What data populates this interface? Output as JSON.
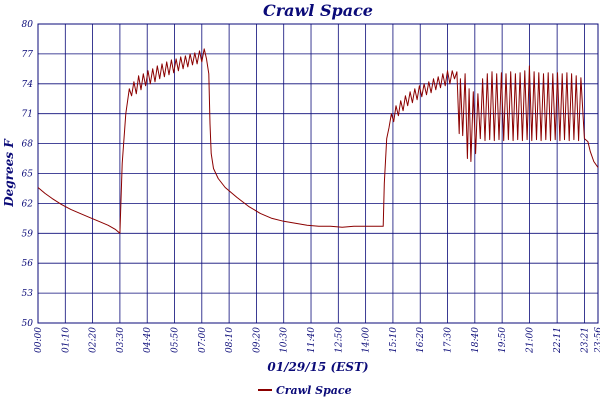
{
  "colors": {
    "plot_background": "#ffffff",
    "grid": "#0a0a78",
    "axis_text": "#0a0a78",
    "series": "#8b0000"
  },
  "chart_data": {
    "type": "line",
    "title": "Crawl Space",
    "xlabel": "01/29/15 (EST)",
    "ylabel": "Degrees F",
    "ylim": [
      50,
      80
    ],
    "yticks": [
      50,
      53,
      56,
      59,
      62,
      65,
      68,
      71,
      74,
      77,
      80
    ],
    "xlim": [
      0,
      23.93
    ],
    "xticks": [
      {
        "label": "00:00",
        "hour": 0
      },
      {
        "label": "01:10",
        "hour": 1.1667
      },
      {
        "label": "02:20",
        "hour": 2.3333
      },
      {
        "label": "03:30",
        "hour": 3.5
      },
      {
        "label": "04:40",
        "hour": 4.6667
      },
      {
        "label": "05:50",
        "hour": 5.8333
      },
      {
        "label": "07:00",
        "hour": 7.0
      },
      {
        "label": "08:10",
        "hour": 8.1667
      },
      {
        "label": "09:20",
        "hour": 9.3333
      },
      {
        "label": "10:30",
        "hour": 10.5
      },
      {
        "label": "11:40",
        "hour": 11.6667
      },
      {
        "label": "12:50",
        "hour": 12.8333
      },
      {
        "label": "14:00",
        "hour": 14.0
      },
      {
        "label": "15:10",
        "hour": 15.1667
      },
      {
        "label": "16:20",
        "hour": 16.3333
      },
      {
        "label": "17:30",
        "hour": 17.5
      },
      {
        "label": "18:40",
        "hour": 18.6667
      },
      {
        "label": "19:50",
        "hour": 19.8333
      },
      {
        "label": "21:00",
        "hour": 21.0
      },
      {
        "label": "22:11",
        "hour": 22.1833
      },
      {
        "label": "23:21",
        "hour": 23.35
      },
      {
        "label": "23:56",
        "hour": 23.9333
      }
    ],
    "grid": true,
    "legend": "bottom-center",
    "series": [
      {
        "name": "Crawl Space",
        "x_unit": "hours since 00:00",
        "points": [
          [
            0.0,
            63.6
          ],
          [
            0.3,
            63.0
          ],
          [
            0.6,
            62.5
          ],
          [
            1.0,
            61.9
          ],
          [
            1.4,
            61.4
          ],
          [
            1.8,
            61.0
          ],
          [
            2.2,
            60.6
          ],
          [
            2.6,
            60.2
          ],
          [
            3.0,
            59.8
          ],
          [
            3.3,
            59.4
          ],
          [
            3.45,
            59.1
          ],
          [
            3.5,
            59.0
          ],
          [
            3.6,
            66.0
          ],
          [
            3.75,
            71.0
          ],
          [
            3.9,
            73.5
          ],
          [
            4.0,
            72.8
          ],
          [
            4.1,
            74.2
          ],
          [
            4.2,
            73.0
          ],
          [
            4.3,
            74.8
          ],
          [
            4.4,
            73.4
          ],
          [
            4.5,
            75.0
          ],
          [
            4.6,
            73.8
          ],
          [
            4.7,
            75.3
          ],
          [
            4.8,
            74.0
          ],
          [
            4.9,
            75.5
          ],
          [
            5.0,
            74.2
          ],
          [
            5.1,
            75.8
          ],
          [
            5.2,
            74.5
          ],
          [
            5.3,
            76.0
          ],
          [
            5.4,
            74.7
          ],
          [
            5.5,
            76.2
          ],
          [
            5.6,
            74.9
          ],
          [
            5.7,
            76.4
          ],
          [
            5.8,
            75.1
          ],
          [
            5.9,
            76.5
          ],
          [
            6.0,
            75.3
          ],
          [
            6.1,
            76.7
          ],
          [
            6.2,
            75.5
          ],
          [
            6.3,
            76.8
          ],
          [
            6.4,
            75.7
          ],
          [
            6.5,
            77.0
          ],
          [
            6.6,
            75.9
          ],
          [
            6.7,
            77.1
          ],
          [
            6.8,
            76.0
          ],
          [
            6.9,
            77.3
          ],
          [
            7.0,
            76.2
          ],
          [
            7.1,
            77.5
          ],
          [
            7.2,
            76.5
          ],
          [
            7.3,
            75.0
          ],
          [
            7.35,
            70.0
          ],
          [
            7.4,
            67.0
          ],
          [
            7.5,
            65.5
          ],
          [
            7.7,
            64.5
          ],
          [
            8.0,
            63.6
          ],
          [
            8.5,
            62.6
          ],
          [
            9.0,
            61.7
          ],
          [
            9.5,
            61.0
          ],
          [
            10.0,
            60.5
          ],
          [
            10.5,
            60.2
          ],
          [
            11.0,
            60.0
          ],
          [
            11.5,
            59.8
          ],
          [
            12.0,
            59.7
          ],
          [
            12.5,
            59.7
          ],
          [
            13.0,
            59.6
          ],
          [
            13.5,
            59.7
          ],
          [
            14.0,
            59.7
          ],
          [
            14.5,
            59.7
          ],
          [
            14.75,
            59.7
          ],
          [
            14.8,
            64.0
          ],
          [
            14.9,
            68.5
          ],
          [
            15.0,
            69.6
          ],
          [
            15.1,
            71.0
          ],
          [
            15.2,
            70.2
          ],
          [
            15.3,
            71.8
          ],
          [
            15.4,
            70.8
          ],
          [
            15.5,
            72.3
          ],
          [
            15.6,
            71.3
          ],
          [
            15.7,
            72.8
          ],
          [
            15.8,
            71.8
          ],
          [
            15.9,
            73.2
          ],
          [
            16.0,
            72.1
          ],
          [
            16.1,
            73.5
          ],
          [
            16.2,
            72.4
          ],
          [
            16.3,
            73.8
          ],
          [
            16.4,
            72.7
          ],
          [
            16.5,
            74.0
          ],
          [
            16.6,
            72.9
          ],
          [
            16.7,
            74.2
          ],
          [
            16.8,
            73.1
          ],
          [
            16.9,
            74.5
          ],
          [
            17.0,
            73.4
          ],
          [
            17.1,
            74.7
          ],
          [
            17.2,
            73.6
          ],
          [
            17.3,
            75.0
          ],
          [
            17.4,
            73.8
          ],
          [
            17.5,
            75.3
          ],
          [
            17.6,
            74.0
          ],
          [
            17.7,
            75.3
          ],
          [
            17.8,
            74.5
          ],
          [
            17.9,
            75.2
          ],
          [
            18.0,
            69.0
          ],
          [
            18.05,
            74.5
          ],
          [
            18.15,
            68.8
          ],
          [
            18.25,
            75.0
          ],
          [
            18.35,
            66.5
          ],
          [
            18.42,
            73.5
          ],
          [
            18.5,
            66.2
          ],
          [
            18.6,
            73.2
          ],
          [
            18.7,
            67.0
          ],
          [
            18.8,
            73.0
          ],
          [
            18.9,
            68.5
          ],
          [
            19.0,
            74.5
          ],
          [
            19.1,
            68.3
          ],
          [
            19.2,
            75.0
          ],
          [
            19.3,
            68.4
          ],
          [
            19.4,
            75.2
          ],
          [
            19.5,
            68.3
          ],
          [
            19.6,
            75.0
          ],
          [
            19.7,
            68.4
          ],
          [
            19.8,
            75.1
          ],
          [
            19.9,
            68.3
          ],
          [
            20.0,
            75.0
          ],
          [
            20.1,
            68.4
          ],
          [
            20.2,
            75.2
          ],
          [
            20.3,
            68.3
          ],
          [
            20.4,
            75.0
          ],
          [
            20.5,
            68.4
          ],
          [
            20.6,
            75.1
          ],
          [
            20.7,
            68.3
          ],
          [
            20.8,
            75.3
          ],
          [
            20.9,
            68.4
          ],
          [
            21.0,
            75.8
          ],
          [
            21.1,
            68.3
          ],
          [
            21.2,
            75.2
          ],
          [
            21.3,
            68.4
          ],
          [
            21.4,
            75.1
          ],
          [
            21.5,
            68.3
          ],
          [
            21.6,
            75.0
          ],
          [
            21.7,
            68.4
          ],
          [
            21.8,
            75.1
          ],
          [
            21.9,
            68.3
          ],
          [
            22.0,
            75.0
          ],
          [
            22.1,
            68.4
          ],
          [
            22.2,
            75.1
          ],
          [
            22.3,
            68.3
          ],
          [
            22.4,
            75.0
          ],
          [
            22.5,
            68.4
          ],
          [
            22.6,
            75.1
          ],
          [
            22.7,
            68.3
          ],
          [
            22.8,
            75.0
          ],
          [
            22.9,
            68.4
          ],
          [
            23.0,
            74.8
          ],
          [
            23.1,
            68.3
          ],
          [
            23.2,
            74.6
          ],
          [
            23.35,
            68.5
          ],
          [
            23.5,
            68.2
          ],
          [
            23.6,
            67.2
          ],
          [
            23.75,
            66.2
          ],
          [
            23.93,
            65.6
          ]
        ]
      }
    ]
  }
}
